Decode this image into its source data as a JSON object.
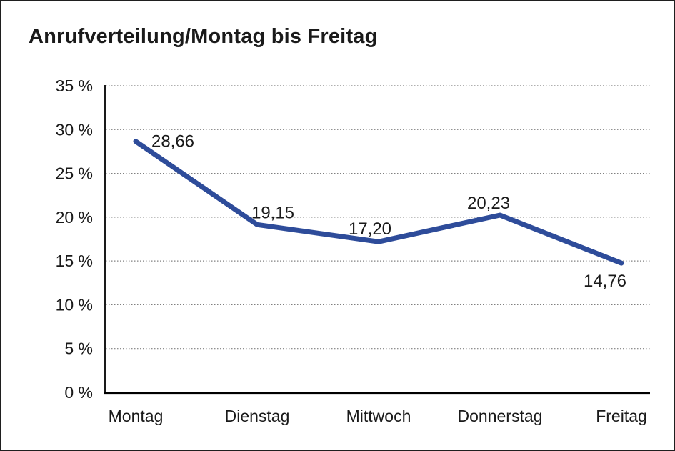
{
  "chart_data": {
    "type": "line",
    "title": "Anrufverteilung/Montag bis Freitag",
    "categories": [
      "Montag",
      "Dienstag",
      "Mittwoch",
      "Donnerstag",
      "Freitag"
    ],
    "values": [
      28.66,
      19.15,
      17.2,
      20.23,
      14.76
    ],
    "point_labels": [
      "28,66",
      "19,15",
      "17,20",
      "20,23",
      "14,76"
    ],
    "y_tick_labels": [
      "0 %",
      "5 %",
      "10 %",
      "15 %",
      "20 %",
      "25 %",
      "30 %",
      "35 %"
    ],
    "ylim": [
      0,
      35
    ],
    "y_tick_step": 5,
    "grid": "horizontal-dotted",
    "legend_position": "none",
    "xlabel": "",
    "ylabel": "",
    "colors": {
      "line": "#2E4C9A",
      "grid": "#808080",
      "axis": "#000000",
      "text": "#1A1A1A",
      "background": "#FFFFFF",
      "border": "#1F1F1F"
    }
  }
}
